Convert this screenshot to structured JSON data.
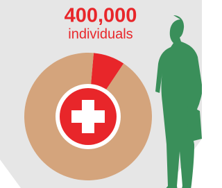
{
  "chart_data": {
    "type": "donut",
    "title": "400,000",
    "subtitle": "individuals",
    "values": [
      8,
      92
    ],
    "colors": [
      "#e8262a",
      "#d4a47c"
    ]
  }
}
